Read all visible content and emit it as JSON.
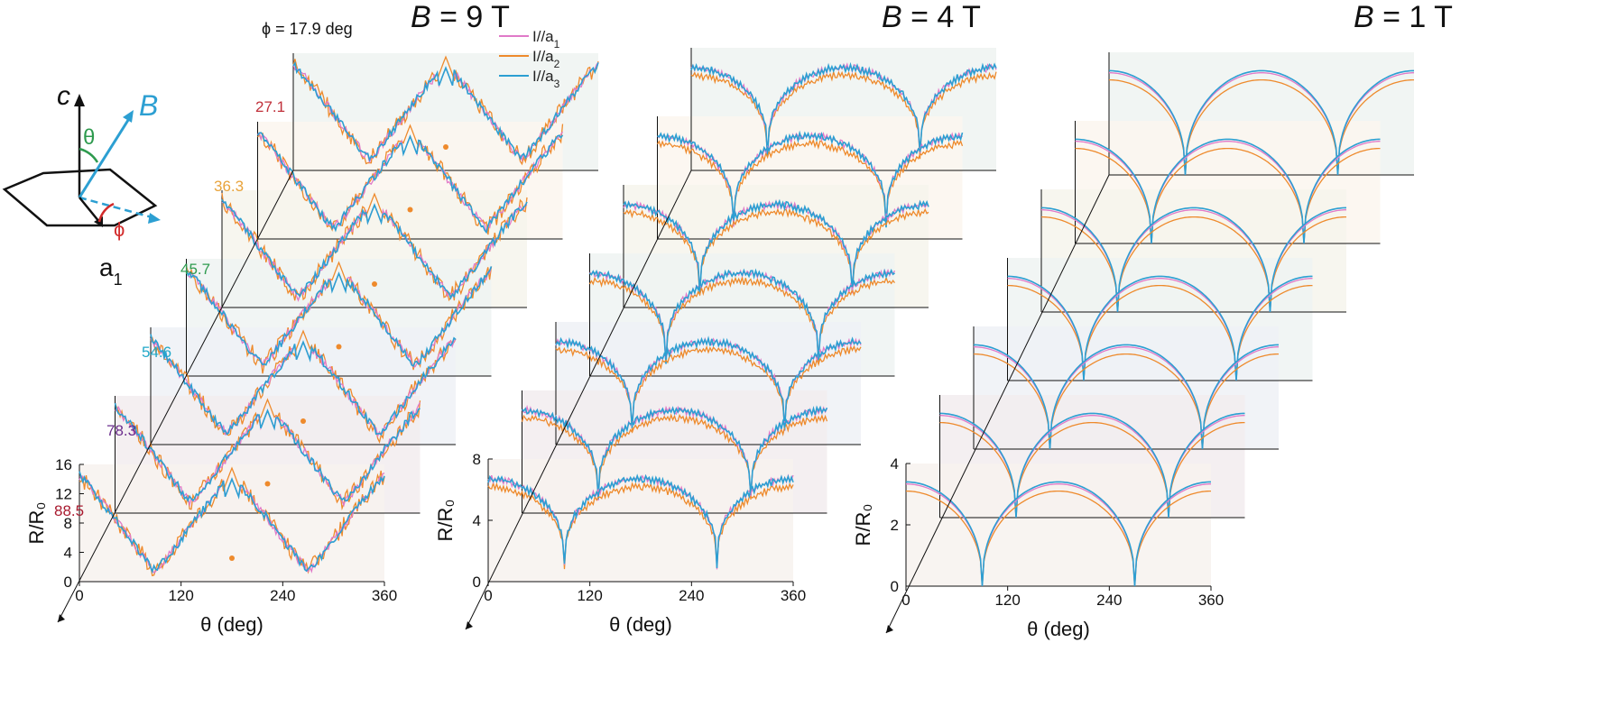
{
  "figure": {
    "phi_fixed_label": "ϕ = 17.9 deg",
    "legend": [
      {
        "label_main": "I//a",
        "sub": "1",
        "color": "#e07ac8"
      },
      {
        "label_main": "I//a",
        "sub": "2",
        "color": "#ee8a2c"
      },
      {
        "label_main": "I//a",
        "sub": "3",
        "color": "#2c9fd2"
      }
    ],
    "schematic": {
      "c_label": "c",
      "B_label": "B",
      "theta_label": "θ",
      "phi_label": "ϕ",
      "a_label": "a",
      "a_sub": "1"
    },
    "phi_labels": [
      {
        "text": "27.1",
        "color": "#c0303a"
      },
      {
        "text": "36.3",
        "color": "#e8a33b"
      },
      {
        "text": "45.7",
        "color": "#2e9a4e"
      },
      {
        "text": "54.6",
        "color": "#22a8c8"
      },
      {
        "text": "78.3",
        "color": "#6a2c8c"
      },
      {
        "text": "88.5",
        "color": "#a8192e"
      }
    ],
    "colors": {
      "a1": "#e07ac8",
      "a2": "#ee8a2c",
      "a3": "#2c9fd2",
      "axis": "#111111"
    }
  },
  "chart_data": [
    {
      "type": "line",
      "title_prefix": "B",
      "title_suffix": " = 9 T",
      "xlabel": "θ (deg)",
      "ylabel": "R/R₀",
      "xlim": [
        0,
        360
      ],
      "ylim": [
        0,
        16
      ],
      "xticks": [
        "0",
        "120",
        "240",
        "360"
      ],
      "yticks": [
        "0",
        "4",
        "8",
        "12",
        "16"
      ],
      "phi_deg": [
        17.9,
        27.1,
        36.3,
        45.7,
        54.6,
        78.3,
        88.5
      ],
      "minima_theta": [
        90,
        270
      ],
      "series": [
        {
          "name": "I//a1",
          "min_value": 1.5,
          "max_value": 14.5
        },
        {
          "name": "I//a2",
          "min_value": 1.2,
          "max_value": 15.5
        },
        {
          "name": "I//a3",
          "min_value": 1.5,
          "max_value": 14.5
        }
      ]
    },
    {
      "type": "line",
      "title_prefix": "B",
      "title_suffix": " = 4 T",
      "xlabel": "θ (deg)",
      "ylabel": "R/R₀",
      "xlim": [
        0,
        360
      ],
      "ylim": [
        0,
        8
      ],
      "xticks": [
        "0",
        "120",
        "240",
        "360"
      ],
      "yticks": [
        "0",
        "4",
        "8"
      ],
      "phi_deg": [
        17.9,
        27.1,
        36.3,
        45.7,
        54.6,
        78.3,
        88.5
      ],
      "minima_theta": [
        90,
        270
      ],
      "series": [
        {
          "name": "I//a1",
          "min_value": 1.0,
          "max_value": 6.7
        },
        {
          "name": "I//a2",
          "min_value": 1.0,
          "max_value": 6.2
        },
        {
          "name": "I//a3",
          "min_value": 1.0,
          "max_value": 6.7
        }
      ]
    },
    {
      "type": "line",
      "title_prefix": "B",
      "title_suffix": " = 1 T",
      "xlabel": "θ (deg)",
      "ylabel": "R/R₀",
      "xlim": [
        0,
        360
      ],
      "ylim": [
        0,
        4
      ],
      "xticks": [
        "0",
        "120",
        "240",
        "360"
      ],
      "yticks": [
        "0",
        "2",
        "4"
      ],
      "phi_deg": [
        17.9,
        27.1,
        36.3,
        45.7,
        54.6,
        78.3,
        88.5
      ],
      "minima_theta": [
        90,
        270
      ],
      "series": [
        {
          "name": "I//a1",
          "min_value": 0.0,
          "max_value": 3.4
        },
        {
          "name": "I//a2",
          "min_value": 0.0,
          "max_value": 3.1
        },
        {
          "name": "I//a3",
          "min_value": 0.0,
          "max_value": 3.4
        }
      ]
    }
  ]
}
